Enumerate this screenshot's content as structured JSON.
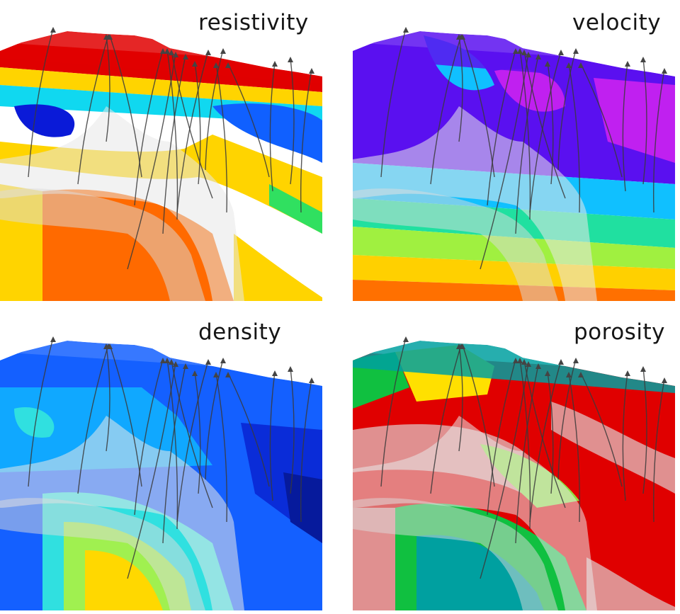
{
  "panels": [
    {
      "id": "resistivity",
      "label": "resistivity",
      "palette": [
        "#e00000",
        "#ff6a00",
        "#ffd400",
        "#c8f000",
        "#30e060",
        "#10d8f0",
        "#1060ff",
        "#0a1ad8"
      ]
    },
    {
      "id": "velocity",
      "label": "velocity",
      "palette": [
        "#ff7000",
        "#ffd000",
        "#a0f040",
        "#20e0a0",
        "#10c0ff",
        "#1040ff",
        "#5a10f0",
        "#c020f0"
      ]
    },
    {
      "id": "density",
      "label": "density",
      "palette": [
        "#ff8000",
        "#ffd800",
        "#a0f050",
        "#30e0e0",
        "#10a8ff",
        "#1460ff",
        "#0a2cd8",
        "#061a9c"
      ]
    },
    {
      "id": "porosity",
      "label": "porosity",
      "palette": [
        "#00a0a0",
        "#10c040",
        "#90e040",
        "#ffe000",
        "#e09090",
        "#d04040",
        "#e00000",
        "#c80000"
      ]
    }
  ]
}
